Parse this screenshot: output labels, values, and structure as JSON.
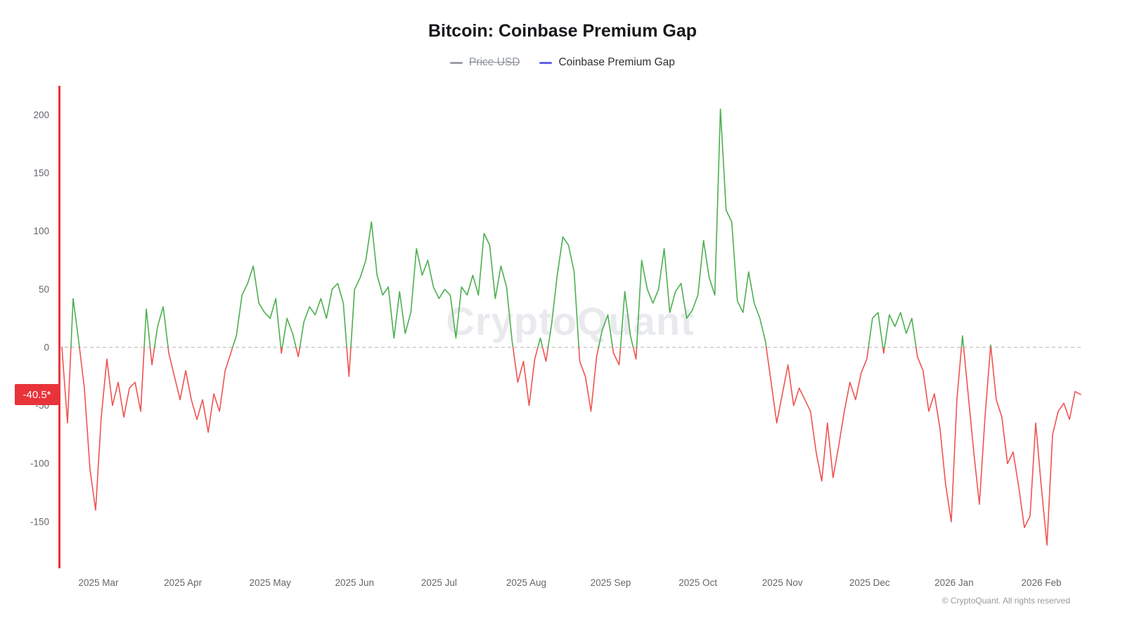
{
  "title": "Bitcoin: Coinbase Premium Gap",
  "legend": {
    "items": [
      {
        "label": "Price USD",
        "color": "#9aa0a6",
        "disabled": true
      },
      {
        "label": "Coinbase Premium Gap",
        "color": "#6462e8",
        "disabled": false
      }
    ]
  },
  "badge": {
    "text": "-40.5*",
    "value": -40.5,
    "color": "#e8333a"
  },
  "watermark": "CryptoQuant",
  "footer": "© CryptoQuant. All rights reserved",
  "chart_data": {
    "type": "line",
    "title": "Bitcoin: Coinbase Premium Gap",
    "series_name": "Coinbase Premium Gap",
    "x_start_day": 0,
    "x_step_days": 2,
    "x_ticks": [
      {
        "label": "2025 Mar",
        "day": 13
      },
      {
        "label": "2025 Apr",
        "day": 43
      },
      {
        "label": "2025 May",
        "day": 74
      },
      {
        "label": "2025 Jun",
        "day": 104
      },
      {
        "label": "2025 Jul",
        "day": 134
      },
      {
        "label": "2025 Aug",
        "day": 165
      },
      {
        "label": "2025 Sep",
        "day": 195
      },
      {
        "label": "2025 Oct",
        "day": 226
      },
      {
        "label": "2025 Nov",
        "day": 256
      },
      {
        "label": "2025 Dec",
        "day": 287
      },
      {
        "label": "2026 Jan",
        "day": 317
      },
      {
        "label": "2026 Feb",
        "day": 348
      }
    ],
    "y_ticks": [
      200,
      150,
      100,
      50,
      0,
      -50,
      -100,
      -150
    ],
    "ylim": [
      -190,
      225
    ],
    "zero_line_dashed": true,
    "colors": {
      "positive": "#4caf50",
      "negative": "#ef5350",
      "axis_line": "#e8333a",
      "zero_line": "#b0b0b0",
      "tick_text": "#63666b"
    },
    "values": [
      0,
      -65,
      42,
      5,
      -35,
      -105,
      -140,
      -60,
      -10,
      -50,
      -30,
      -60,
      -35,
      -30,
      -55,
      33,
      -15,
      18,
      35,
      -5,
      -25,
      -45,
      -20,
      -45,
      -62,
      -45,
      -73,
      -40,
      -55,
      -20,
      -5,
      10,
      45,
      55,
      70,
      38,
      30,
      25,
      42,
      -5,
      25,
      12,
      -8,
      22,
      35,
      28,
      42,
      25,
      50,
      55,
      38,
      -25,
      50,
      60,
      75,
      108,
      62,
      45,
      52,
      8,
      48,
      12,
      30,
      85,
      62,
      75,
      52,
      42,
      50,
      45,
      8,
      52,
      45,
      62,
      45,
      98,
      88,
      42,
      70,
      52,
      5,
      -30,
      -12,
      -50,
      -10,
      8,
      -12,
      20,
      62,
      95,
      88,
      65,
      -12,
      -25,
      -55,
      -8,
      15,
      28,
      -5,
      -15,
      48,
      10,
      -10,
      75,
      50,
      38,
      50,
      85,
      30,
      48,
      55,
      25,
      32,
      45,
      92,
      60,
      45,
      205,
      118,
      108,
      40,
      30,
      65,
      38,
      25,
      5,
      -30,
      -65,
      -40,
      -15,
      -50,
      -35,
      -45,
      -55,
      -90,
      -115,
      -65,
      -112,
      -85,
      -55,
      -30,
      -45,
      -22,
      -10,
      25,
      30,
      -5,
      28,
      18,
      30,
      12,
      25,
      -8,
      -20,
      -55,
      -40,
      -70,
      -118,
      -150,
      -45,
      10,
      -40,
      -90,
      -135,
      -60,
      2,
      -45,
      -60,
      -100,
      -90,
      -120,
      -155,
      -145,
      -65,
      -120,
      -170,
      -75,
      -55,
      -48,
      -62,
      -38,
      -40.5
    ],
    "last_value": -40.5
  }
}
